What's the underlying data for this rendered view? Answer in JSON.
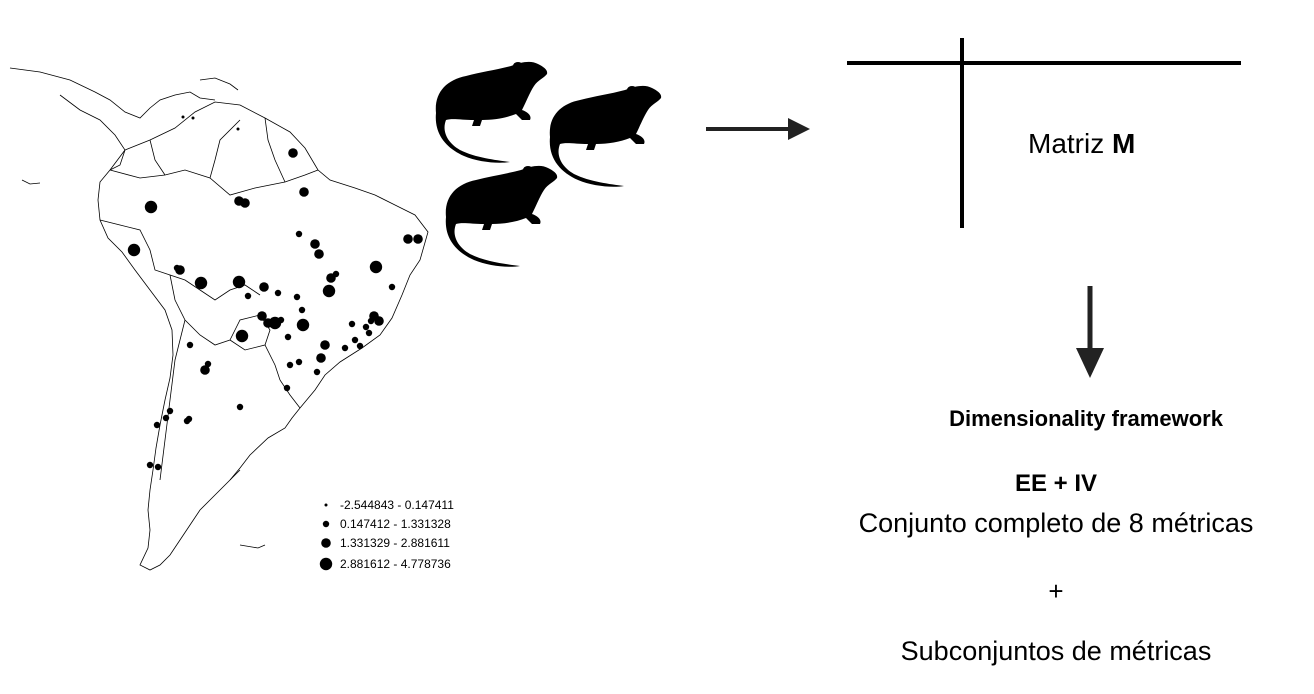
{
  "legend": {
    "items": [
      {
        "label": "-2.544843 - 0.147411"
      },
      {
        "label": "0.147412 - 1.331328"
      },
      {
        "label": "1.331329 - 2.881611"
      },
      {
        "label": "2.881612 - 4.778736"
      }
    ]
  },
  "matrix": {
    "label_prefix": "Matriz ",
    "label_bold": "M"
  },
  "framework": {
    "title": "Dimensionality framework",
    "ee_iv": "EE + IV",
    "full_set": "Conjunto completo de 8 métricas",
    "plus": "+",
    "subsets": "Subconjuntos de métricas"
  },
  "icons": {
    "rodent": "rodent-silhouette-icon",
    "arrow_right": "arrow-right-icon",
    "arrow_down": "arrow-down-icon"
  }
}
